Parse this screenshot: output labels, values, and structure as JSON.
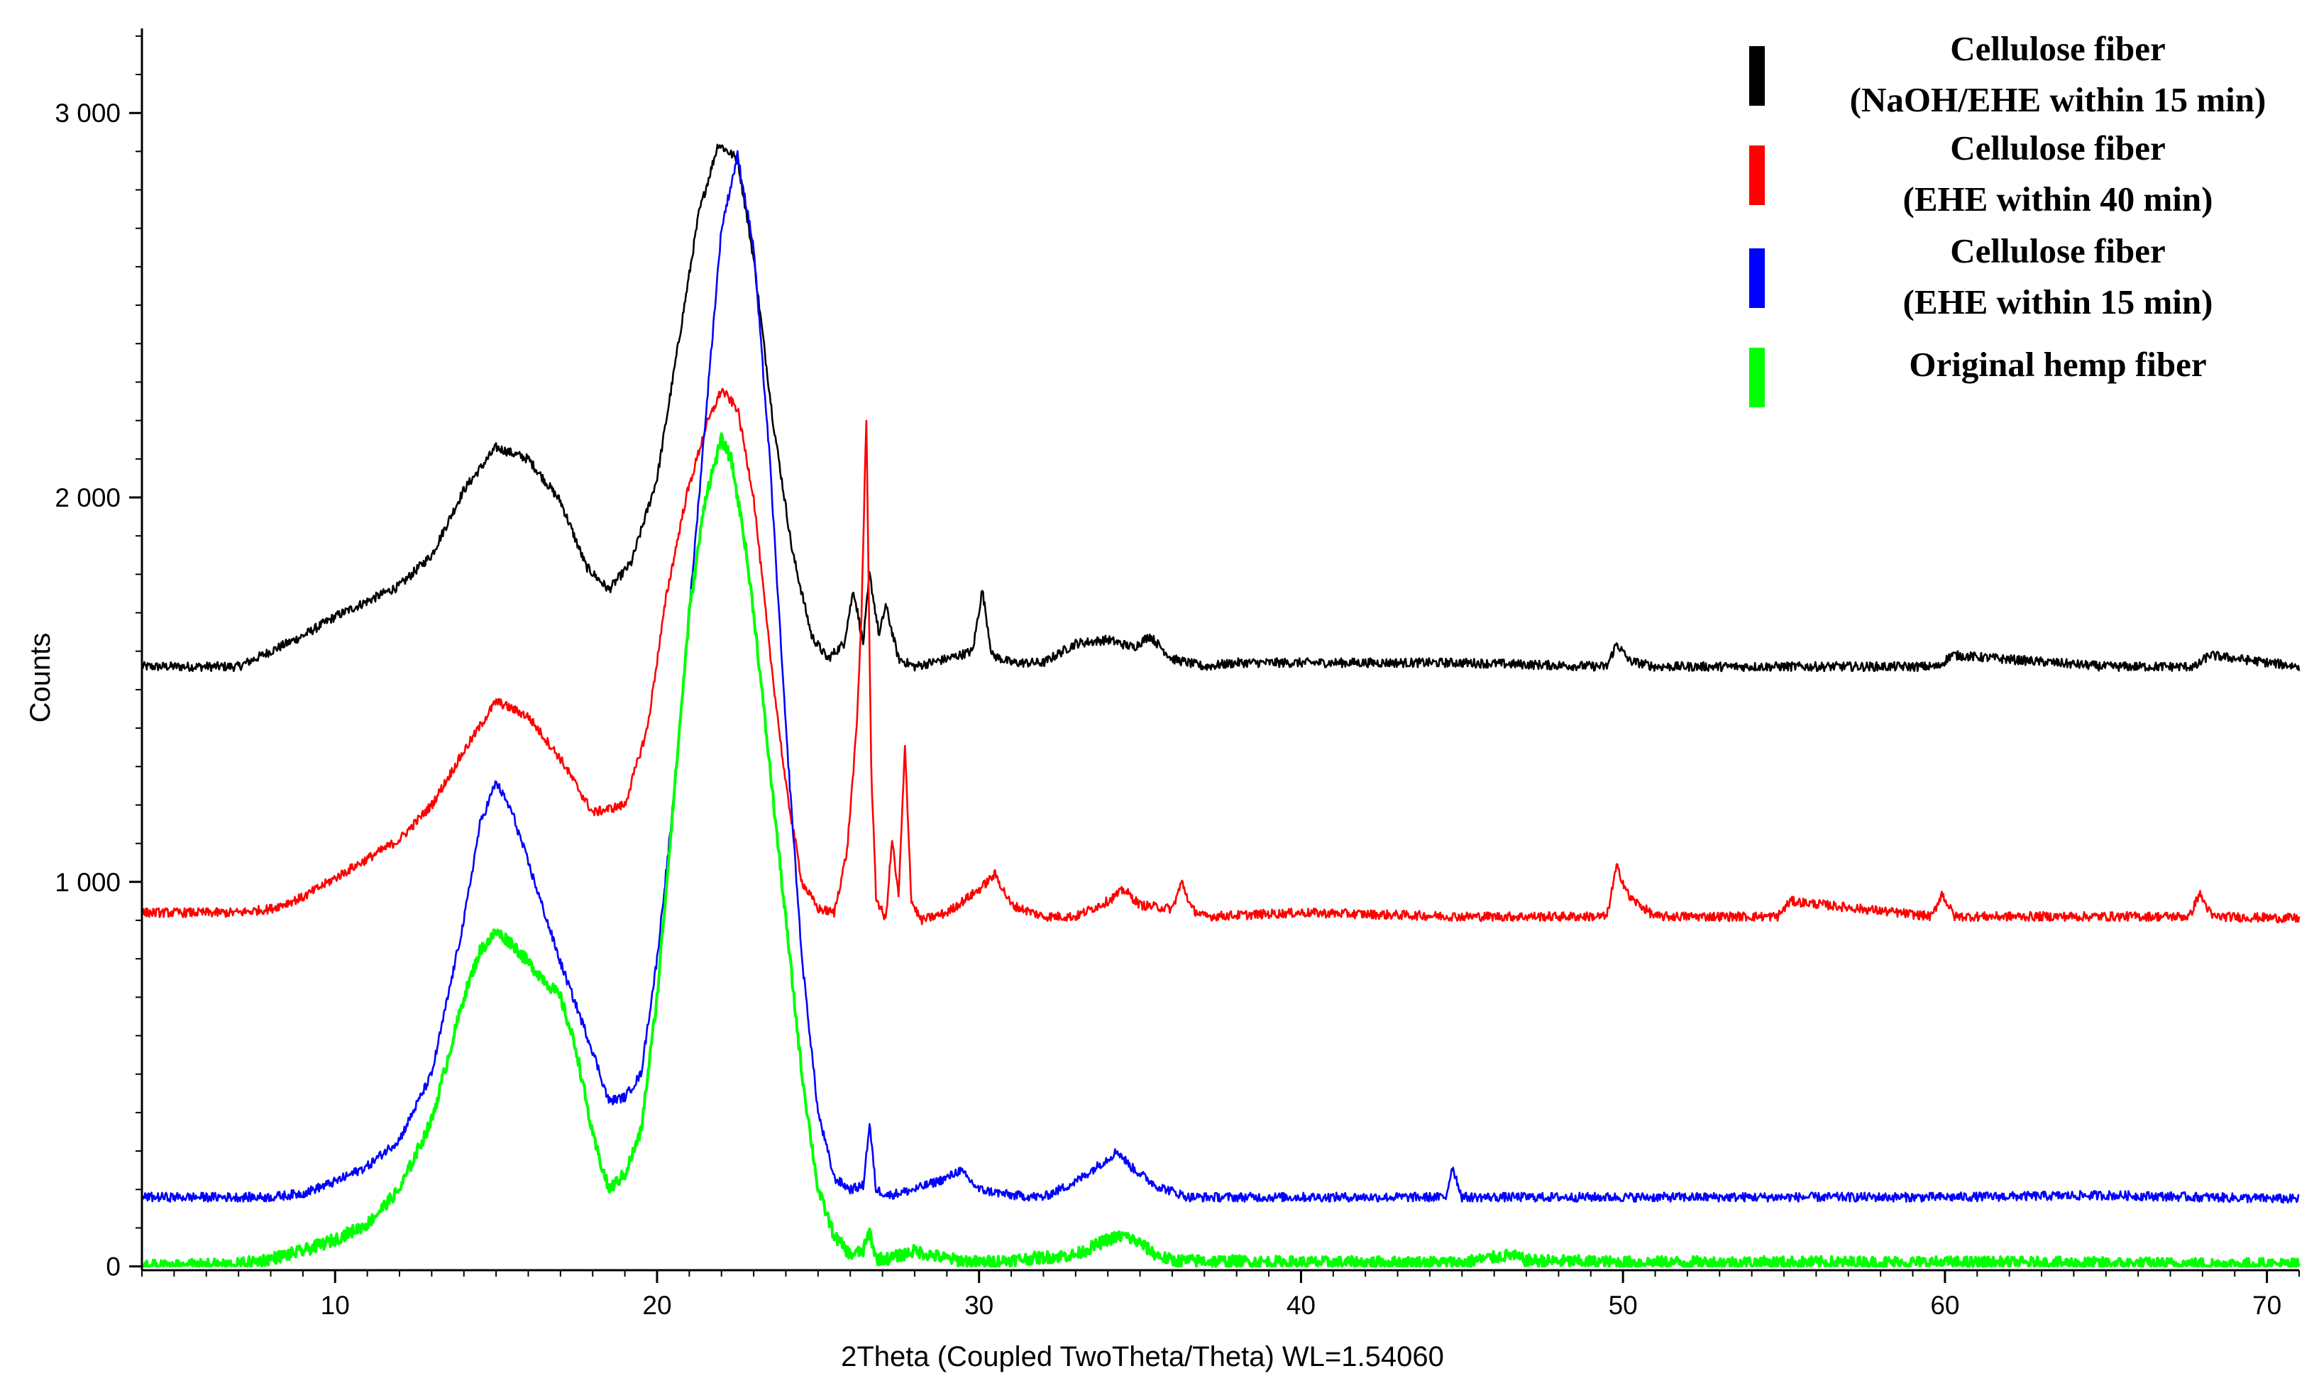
{
  "chart_data": {
    "type": "line",
    "xlabel": "2Theta (Coupled TwoTheta/Theta) WL=1.54060",
    "ylabel": "Counts",
    "xlim": [
      4,
      71
    ],
    "ylim": [
      -10,
      3220
    ],
    "x_ticks": [
      10,
      20,
      30,
      40,
      50,
      60,
      70
    ],
    "x_tick_labels": [
      "10",
      "20",
      "30",
      "40",
      "50",
      "60",
      "70"
    ],
    "y_ticks": [
      0,
      1000,
      2000,
      3000
    ],
    "y_tick_labels": [
      "0",
      "1 000",
      "2 000",
      "3 000"
    ],
    "grid": false,
    "legend_position": "top-right",
    "series": [
      {
        "legend_lines": [
          "Cellulose fiber",
          "(NaOH/EHE within 15 min)"
        ],
        "color": "#000000",
        "x": [
          4,
          7,
          8,
          9,
          10,
          11,
          12,
          13,
          14,
          15,
          16,
          17,
          17.8,
          18.5,
          19.2,
          20,
          20.7,
          21.3,
          21.9,
          22.5,
          23,
          23.6,
          24.2,
          24.8,
          25.3,
          25.8,
          26.1,
          26.4,
          26.6,
          26.9,
          27.1,
          27.5,
          28,
          29,
          29.8,
          30.1,
          30.4,
          31,
          32,
          33,
          34,
          34.8,
          35.3,
          36,
          37,
          38,
          41,
          45,
          49.5,
          49.8,
          50.2,
          51,
          55,
          59.8,
          60.2,
          65,
          67.8,
          68.2,
          71
        ],
        "y": [
          1560,
          1560,
          1600,
          1640,
          1690,
          1730,
          1770,
          1850,
          2020,
          2130,
          2100,
          1990,
          1820,
          1760,
          1830,
          2050,
          2420,
          2740,
          2920,
          2880,
          2620,
          2200,
          1860,
          1640,
          1580,
          1620,
          1760,
          1620,
          1800,
          1640,
          1720,
          1580,
          1560,
          1580,
          1600,
          1760,
          1590,
          1570,
          1570,
          1620,
          1630,
          1610,
          1640,
          1580,
          1560,
          1570,
          1570,
          1570,
          1560,
          1620,
          1575,
          1560,
          1560,
          1560,
          1590,
          1560,
          1560,
          1590,
          1560
        ]
      },
      {
        "legend_lines": [
          "Cellulose fiber",
          "(EHE within 40 min)"
        ],
        "color": "#ff0000",
        "x": [
          4,
          7,
          8,
          9,
          10,
          11,
          12,
          13,
          14,
          15,
          16,
          17,
          18,
          19,
          19.7,
          20.3,
          20.9,
          21.5,
          22,
          22.5,
          23,
          23.5,
          24,
          24.5,
          25,
          25.5,
          25.9,
          26.2,
          26.35,
          26.5,
          26.65,
          26.8,
          27.1,
          27.3,
          27.5,
          27.7,
          27.9,
          28.2,
          29,
          30,
          30.5,
          31,
          32,
          33,
          34,
          34.5,
          35,
          36,
          36.3,
          36.6,
          37,
          40,
          45,
          49.5,
          49.8,
          50.2,
          51,
          54.8,
          55.2,
          59.6,
          59.9,
          60.3,
          65,
          67.6,
          67.9,
          68.3,
          71
        ],
        "y": [
          920,
          920,
          930,
          960,
          1010,
          1060,
          1110,
          1200,
          1340,
          1470,
          1430,
          1320,
          1180,
          1200,
          1400,
          1750,
          2000,
          2180,
          2280,
          2230,
          2000,
          1600,
          1250,
          1000,
          930,
          920,
          1080,
          1400,
          1700,
          2210,
          1300,
          960,
          900,
          1110,
          960,
          1350,
          950,
          900,
          920,
          980,
          1020,
          940,
          910,
          910,
          950,
          980,
          940,
          930,
          1000,
          930,
          910,
          920,
          910,
          910,
          1040,
          960,
          910,
          910,
          950,
          910,
          970,
          910,
          910,
          910,
          970,
          910,
          905
        ]
      },
      {
        "legend_lines": [
          "Cellulose fiber",
          "(EHE within 15 min)"
        ],
        "color": "#0000ff",
        "x": [
          4,
          8,
          9,
          10,
          11,
          12,
          13,
          14,
          14.5,
          15,
          15.5,
          16,
          17,
          18,
          18.5,
          19,
          19.5,
          20,
          20.5,
          21,
          21.5,
          22,
          22.5,
          23,
          23.5,
          24,
          24.5,
          25,
          25.5,
          26,
          26.4,
          26.6,
          26.8,
          27.2,
          28,
          29,
          29.4,
          30,
          31,
          32,
          33,
          34,
          34.3,
          34.7,
          35.5,
          36.5,
          38,
          42,
          44.5,
          44.7,
          45,
          50,
          60,
          65,
          71
        ],
        "y": [
          180,
          180,
          190,
          220,
          260,
          330,
          500,
          900,
          1150,
          1260,
          1180,
          1050,
          790,
          560,
          430,
          440,
          500,
          800,
          1200,
          1700,
          2200,
          2700,
          2890,
          2650,
          2100,
          1400,
          800,
          400,
          230,
          200,
          210,
          370,
          200,
          185,
          200,
          230,
          250,
          200,
          185,
          180,
          220,
          280,
          300,
          260,
          210,
          180,
          180,
          180,
          180,
          260,
          180,
          180,
          180,
          185,
          175
        ]
      },
      {
        "legend_lines": [
          "Original hemp fiber"
        ],
        "color": "#00ff00",
        "x": [
          4,
          7,
          8,
          9,
          10,
          11,
          12,
          13,
          14,
          14.5,
          15,
          15.5,
          16,
          17,
          17.5,
          18,
          18.5,
          19,
          19.5,
          20,
          20.5,
          21,
          21.5,
          22,
          22.3,
          22.7,
          23,
          23.5,
          24,
          24.5,
          25,
          25.5,
          26,
          26.4,
          26.6,
          26.8,
          27.2,
          28,
          29,
          30,
          33,
          33.5,
          34,
          34.5,
          35,
          35.5,
          36,
          40,
          45,
          46.5,
          47,
          50,
          60,
          71
        ],
        "y": [
          0,
          5,
          20,
          40,
          70,
          110,
          200,
          380,
          700,
          820,
          870,
          840,
          790,
          700,
          560,
          340,
          200,
          240,
          350,
          700,
          1200,
          1700,
          2000,
          2150,
          2100,
          1900,
          1700,
          1300,
          900,
          500,
          200,
          80,
          30,
          40,
          90,
          20,
          20,
          40,
          20,
          10,
          30,
          50,
          70,
          80,
          60,
          30,
          15,
          10,
          10,
          30,
          15,
          10,
          10,
          5
        ]
      }
    ]
  }
}
